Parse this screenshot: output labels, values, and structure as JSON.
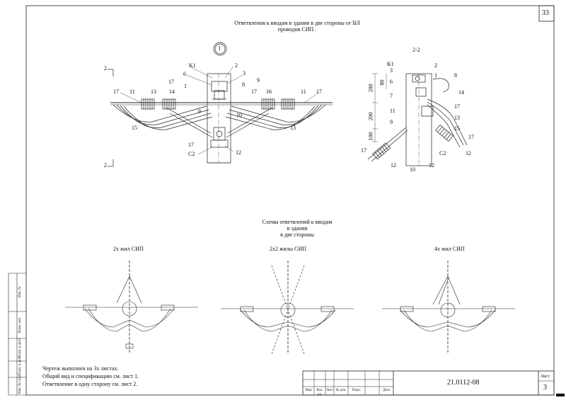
{
  "sheet": {
    "page_number": "33",
    "title": "Ответвления к вводам в здания в две стороны от ВЛ проводов СИП .",
    "title_line1": "Ответвления к вводам в здания в две стороны от ВЛ",
    "title_line2": "проводов СИП ."
  },
  "view_main": {
    "callout": "I",
    "section_mark_top": "2",
    "section_mark_bottom": "2",
    "labels": [
      "K1",
      "2",
      "3",
      "6",
      "17",
      "1",
      "8",
      "9",
      "11",
      "13",
      "14",
      "17",
      "16",
      "11",
      "17",
      "17",
      "9",
      "10",
      "15",
      "13",
      "17",
      "C2",
      "12"
    ]
  },
  "view_section": {
    "title": "2-2",
    "labels": [
      "K1",
      "3",
      "2",
      "1",
      "8",
      "6",
      "7",
      "14",
      "11",
      "17",
      "13",
      "9",
      "15",
      "17",
      "12",
      "17",
      "12",
      "10",
      "C2",
      "12"
    ],
    "dims": [
      "200",
      "80",
      "200",
      "100"
    ]
  },
  "schemes": {
    "title_line1": "Схемы ответвлений к вводам",
    "title_line2": "в здания",
    "title_line3": "в две стороны",
    "items": [
      {
        "label": "2х жил СИП"
      },
      {
        "label": "2х2 жилы СИП"
      },
      {
        "label": "4х жил СИП"
      }
    ]
  },
  "notes": [
    "Чертеж выполнен на 3х листах.",
    "Общий вид и спецификацию см. лист 1.",
    "Ответвление в одну сторону см. лист 2."
  ],
  "stamp": {
    "code": "21.0112-08",
    "sheet_label": "Лист",
    "sheet_number": "3",
    "columns": [
      "Изм.",
      "Кол. уч.",
      "Лист",
      "№ док.",
      "Подп.",
      "Дата"
    ]
  },
  "sidebar": [
    "Инв. №",
    "Взам. инв.",
    "Подп. и дата",
    "Подп. и дата",
    "Инв. № подл."
  ]
}
